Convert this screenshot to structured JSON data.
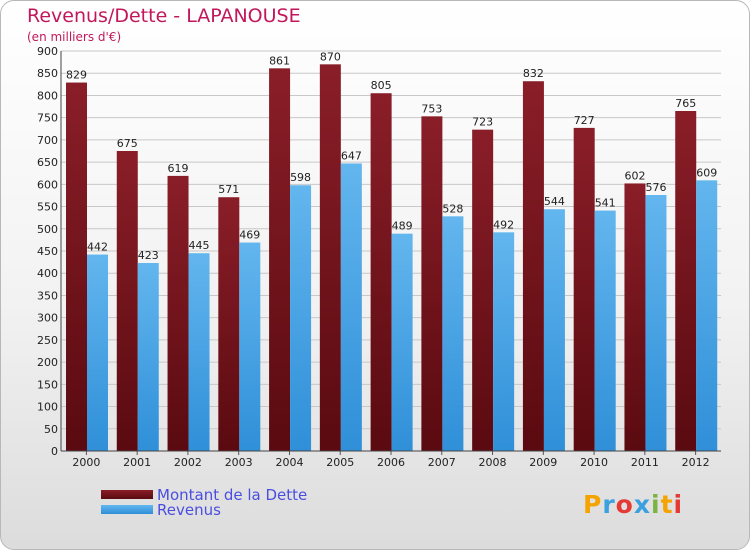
{
  "title": "Revenus/Dette - LAPANOUSE",
  "subtitle": "(en milliers d'€)",
  "colors": {
    "title": "#c2185b",
    "dette_top": "#8a1e28",
    "dette_bottom": "#5a0a10",
    "revenus_top": "#63b6ee",
    "revenus_bottom": "#2f8fd8",
    "legend_text": "#4a4ee0"
  },
  "chart_data": {
    "type": "bar",
    "categories": [
      "2000",
      "2001",
      "2002",
      "2003",
      "2004",
      "2005",
      "2006",
      "2007",
      "2008",
      "2009",
      "2010",
      "2011",
      "2012"
    ],
    "series": [
      {
        "name": "Montant de la Dette",
        "values": [
          829,
          675,
          619,
          571,
          861,
          870,
          805,
          753,
          723,
          832,
          727,
          602,
          765
        ]
      },
      {
        "name": "Revenus",
        "values": [
          442,
          423,
          445,
          469,
          598,
          647,
          489,
          528,
          492,
          544,
          541,
          576,
          609
        ]
      }
    ],
    "ylim": [
      0,
      900
    ],
    "yticks": [
      "0",
      "50",
      "100",
      "150",
      "200",
      "250",
      "300",
      "350",
      "400",
      "450",
      "500",
      "550",
      "600",
      "650",
      "700",
      "750",
      "800",
      "850",
      "900"
    ],
    "grid": true,
    "legend": "bottom-left"
  },
  "legend": {
    "dette_label": "Montant de la Dette",
    "revenus_label": "Revenus"
  },
  "logo": {
    "letters": [
      "P",
      "r",
      "o",
      "x",
      "i",
      "t",
      "i"
    ],
    "letter_colors": [
      "#f4a300",
      "#3aa0e0",
      "#e53935",
      "#3aa0e0",
      "#7cb342",
      "#f4a300",
      "#e53935"
    ]
  }
}
